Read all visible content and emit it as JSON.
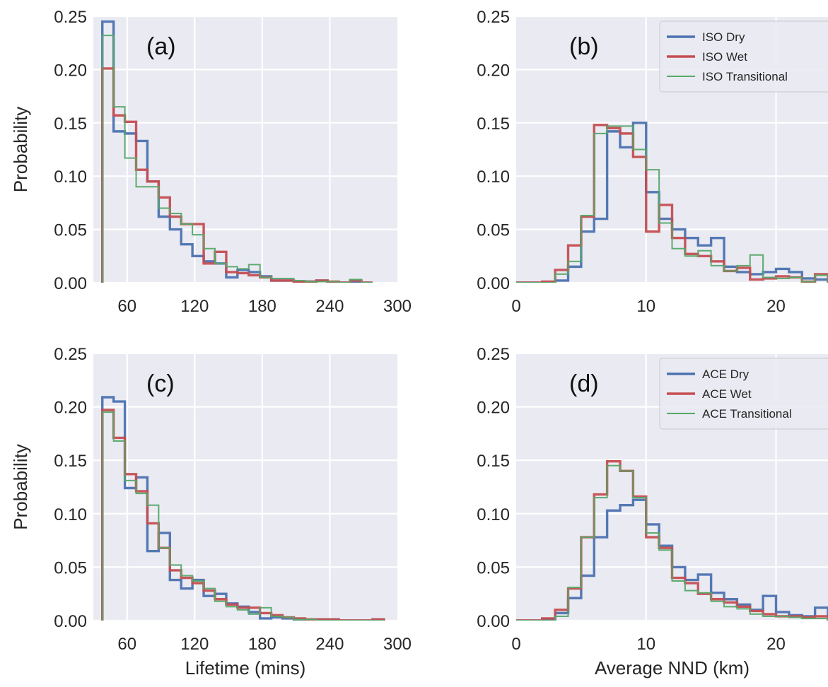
{
  "figure": {
    "colors": {
      "background": "#eaeaf2",
      "grid": "#ffffff",
      "dry": "#4c72b0",
      "wet": "#c44e52",
      "transitional": "#55a868",
      "text": "#262626"
    }
  },
  "chart_data": [
    {
      "id": "a",
      "type": "histogram-step",
      "panel_label": "(a)",
      "xlabel": "",
      "ylabel": "Probability",
      "xlim": [
        30,
        300
      ],
      "ylim": [
        0,
        0.25
      ],
      "xticks": [
        60,
        120,
        180,
        240,
        300
      ],
      "yticks": [
        0.0,
        0.05,
        0.1,
        0.15,
        0.2,
        0.25
      ],
      "ytick_labels": [
        "0.00",
        "0.05",
        "0.10",
        "0.15",
        "0.20",
        "0.25"
      ],
      "bin_edges": [
        38,
        48,
        58,
        68,
        78,
        88,
        98,
        108,
        118,
        128,
        138,
        148,
        158,
        168,
        178,
        188,
        198,
        208,
        218,
        228,
        238,
        248,
        258,
        268,
        278
      ],
      "legend": null,
      "series": [
        {
          "key": "dry",
          "name": "",
          "line_width": 3.4,
          "values": [
            0.245,
            0.142,
            0.14,
            0.133,
            0.095,
            0.062,
            0.05,
            0.036,
            0.025,
            0.02,
            0.018,
            0.005,
            0.012,
            0.01,
            0.006,
            0.002,
            0.002,
            0.001,
            0.001,
            0.002,
            0.0,
            0.0,
            0.001,
            0.0
          ]
        },
        {
          "key": "wet",
          "name": "",
          "line_width": 3.4,
          "values": [
            0.201,
            0.157,
            0.151,
            0.106,
            0.095,
            0.08,
            0.062,
            0.055,
            0.055,
            0.018,
            0.029,
            0.01,
            0.009,
            0.007,
            0.005,
            0.002,
            0.002,
            0.001,
            0.001,
            0.002,
            0.001,
            0.0,
            0.002,
            0.0
          ]
        },
        {
          "key": "transitional",
          "name": "",
          "line_width": 2.0,
          "values": [
            0.232,
            0.165,
            0.117,
            0.09,
            0.09,
            0.07,
            0.065,
            0.055,
            0.045,
            0.032,
            0.018,
            0.015,
            0.013,
            0.017,
            0.005,
            0.004,
            0.004,
            0.002,
            0.001,
            0.001,
            0.001,
            0.0,
            0.003,
            0.0
          ]
        }
      ]
    },
    {
      "id": "b",
      "type": "histogram-step",
      "panel_label": "(b)",
      "xlabel": "",
      "ylabel": "",
      "xlim": [
        0,
        24
      ],
      "ylim": [
        0,
        0.25
      ],
      "xticks": [
        0,
        10,
        20
      ],
      "yticks": [
        0.0,
        0.05,
        0.1,
        0.15,
        0.2,
        0.25
      ],
      "ytick_labels": [
        "0.00",
        "0.05",
        "0.10",
        "0.15",
        "0.20",
        "0.25"
      ],
      "bin_edges": [
        0,
        1,
        2,
        3,
        4,
        5,
        6,
        7,
        8,
        9,
        10,
        11,
        12,
        13,
        14,
        15,
        16,
        17,
        18,
        19,
        20,
        21,
        22,
        23,
        24
      ],
      "legend": {
        "position": "top-right",
        "entries": [
          {
            "key": "dry",
            "label": "ISO Dry"
          },
          {
            "key": "wet",
            "label": "ISO Wet"
          },
          {
            "key": "transitional",
            "label": "ISO Transitional"
          }
        ]
      },
      "series": [
        {
          "key": "dry",
          "name": "ISO Dry",
          "line_width": 3.4,
          "values": [
            0,
            0,
            0,
            0.002,
            0.015,
            0.048,
            0.06,
            0.142,
            0.127,
            0.15,
            0.085,
            0.06,
            0.05,
            0.042,
            0.035,
            0.042,
            0.015,
            0.01,
            0.008,
            0.01,
            0.013,
            0.01,
            0.004,
            0.003
          ]
        },
        {
          "key": "wet",
          "name": "ISO Wet",
          "line_width": 3.4,
          "values": [
            0,
            0,
            0.001,
            0.012,
            0.035,
            0.062,
            0.148,
            0.145,
            0.14,
            0.118,
            0.048,
            0.073,
            0.042,
            0.027,
            0.025,
            0.02,
            0.011,
            0.014,
            0.003,
            0.004,
            0.006,
            0.005,
            0.001,
            0.008
          ]
        },
        {
          "key": "transitional",
          "name": "ISO Transitional",
          "line_width": 2.0,
          "values": [
            0,
            0,
            0,
            0.008,
            0.02,
            0.063,
            0.14,
            0.147,
            0.147,
            0.125,
            0.106,
            0.056,
            0.032,
            0.025,
            0.03,
            0.016,
            0.011,
            0.016,
            0.026,
            0.005,
            0.004,
            0.005,
            0.001,
            0.007
          ]
        }
      ]
    },
    {
      "id": "c",
      "type": "histogram-step",
      "panel_label": "(c)",
      "xlabel": "Lifetime (mins)",
      "ylabel": "Probability",
      "xlim": [
        30,
        300
      ],
      "ylim": [
        0,
        0.25
      ],
      "xticks": [
        60,
        120,
        180,
        240,
        300
      ],
      "yticks": [
        0.0,
        0.05,
        0.1,
        0.15,
        0.2,
        0.25
      ],
      "ytick_labels": [
        "0.00",
        "0.05",
        "0.10",
        "0.15",
        "0.20",
        "0.25"
      ],
      "bin_edges": [
        38,
        48,
        58,
        68,
        78,
        88,
        98,
        108,
        118,
        128,
        138,
        148,
        158,
        168,
        178,
        188,
        198,
        208,
        218,
        228,
        238,
        248,
        258,
        268,
        278,
        288
      ],
      "legend": null,
      "series": [
        {
          "key": "dry",
          "name": "",
          "line_width": 3.4,
          "values": [
            0.209,
            0.205,
            0.124,
            0.134,
            0.065,
            0.082,
            0.038,
            0.03,
            0.038,
            0.023,
            0.025,
            0.016,
            0.013,
            0.008,
            0.002,
            0.003,
            0.002,
            0.001,
            0.001,
            0.001,
            0.001,
            0.0,
            0.0,
            0.0,
            0.001
          ]
        },
        {
          "key": "wet",
          "name": "",
          "line_width": 3.4,
          "values": [
            0.197,
            0.171,
            0.137,
            0.121,
            0.091,
            0.068,
            0.047,
            0.04,
            0.035,
            0.028,
            0.02,
            0.015,
            0.012,
            0.012,
            0.007,
            0.005,
            0.003,
            0.002,
            0.001,
            0.001,
            0.001,
            0.0,
            0.0,
            0.0,
            0.001
          ]
        },
        {
          "key": "transitional",
          "name": "",
          "line_width": 2.0,
          "values": [
            0.195,
            0.168,
            0.131,
            0.119,
            0.108,
            0.068,
            0.052,
            0.042,
            0.037,
            0.03,
            0.018,
            0.013,
            0.01,
            0.006,
            0.012,
            0.004,
            0.003,
            0.001,
            0.001,
            0.0,
            0.0,
            0.0,
            0.0,
            0.0,
            0.0
          ]
        }
      ]
    },
    {
      "id": "d",
      "type": "histogram-step",
      "panel_label": "(d)",
      "xlabel": "Average NND (km)",
      "ylabel": "",
      "xlim": [
        0,
        24
      ],
      "ylim": [
        0,
        0.25
      ],
      "xticks": [
        0,
        10,
        20
      ],
      "yticks": [
        0.0,
        0.05,
        0.1,
        0.15,
        0.2,
        0.25
      ],
      "ytick_labels": [
        "0.00",
        "0.05",
        "0.10",
        "0.15",
        "0.20",
        "0.25"
      ],
      "bin_edges": [
        0,
        1,
        2,
        3,
        4,
        5,
        6,
        7,
        8,
        9,
        10,
        11,
        12,
        13,
        14,
        15,
        16,
        17,
        18,
        19,
        20,
        21,
        22,
        23,
        24
      ],
      "legend": {
        "position": "top-right",
        "entries": [
          {
            "key": "dry",
            "label": "ACE Dry"
          },
          {
            "key": "wet",
            "label": "ACE Wet"
          },
          {
            "key": "transitional",
            "label": "ACE Transitional"
          }
        ]
      },
      "series": [
        {
          "key": "dry",
          "name": "ACE Dry",
          "line_width": 3.4,
          "values": [
            0,
            0,
            0.001,
            0.007,
            0.021,
            0.042,
            0.078,
            0.103,
            0.108,
            0.113,
            0.09,
            0.07,
            0.05,
            0.038,
            0.043,
            0.026,
            0.02,
            0.015,
            0.01,
            0.023,
            0.008,
            0.005,
            0.004,
            0.012
          ]
        },
        {
          "key": "wet",
          "name": "ACE Wet",
          "line_width": 3.4,
          "values": [
            0,
            0,
            0.002,
            0.01,
            0.03,
            0.078,
            0.118,
            0.149,
            0.14,
            0.116,
            0.078,
            0.068,
            0.04,
            0.035,
            0.025,
            0.02,
            0.017,
            0.013,
            0.009,
            0.006,
            0.004,
            0.004,
            0.003,
            0.004
          ]
        },
        {
          "key": "transitional",
          "name": "ACE Transitional",
          "line_width": 2.0,
          "values": [
            0,
            0,
            0,
            0.004,
            0.031,
            0.078,
            0.115,
            0.145,
            0.14,
            0.115,
            0.082,
            0.066,
            0.037,
            0.028,
            0.026,
            0.018,
            0.013,
            0.011,
            0.006,
            0.004,
            0.004,
            0.003,
            0.002,
            0.002
          ]
        }
      ]
    }
  ]
}
